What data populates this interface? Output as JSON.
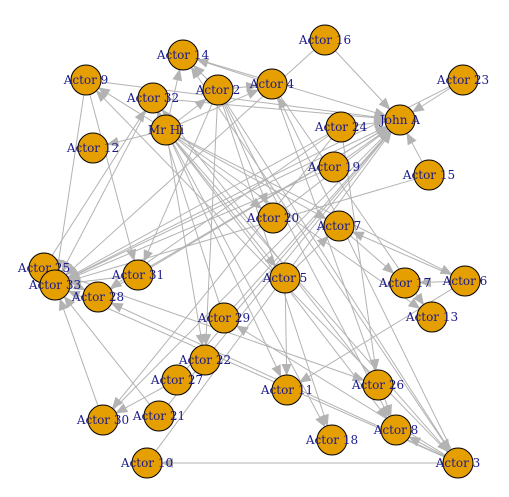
{
  "colors": {
    "node_fill": "#e69f00",
    "node_stroke": "#000000",
    "edge": "#b3b3b3",
    "label": "#1a1a8c",
    "background": "#ffffff"
  },
  "graph": {
    "nodes": [
      {
        "id": "actor16",
        "label": "Actor 16"
      },
      {
        "id": "actor14",
        "label": "Actor 14"
      },
      {
        "id": "actor23",
        "label": "Actor 23"
      },
      {
        "id": "actor9",
        "label": "Actor 9"
      },
      {
        "id": "actor4",
        "label": "Actor 4"
      },
      {
        "id": "actor2",
        "label": "Actor 2"
      },
      {
        "id": "actor32",
        "label": "Actor 32"
      },
      {
        "id": "johna",
        "label": "John A"
      },
      {
        "id": "mrhi",
        "label": "Mr Hi"
      },
      {
        "id": "actor24",
        "label": "Actor 24"
      },
      {
        "id": "actor12",
        "label": "Actor 12"
      },
      {
        "id": "actor19",
        "label": "Actor 19"
      },
      {
        "id": "actor15",
        "label": "Actor 15"
      },
      {
        "id": "actor20",
        "label": "Actor 20"
      },
      {
        "id": "actor7",
        "label": "Actor 7"
      },
      {
        "id": "actor25",
        "label": "Actor 25"
      },
      {
        "id": "actor31",
        "label": "Actor 31"
      },
      {
        "id": "actor33",
        "label": "Actor 33"
      },
      {
        "id": "actor5",
        "label": "Actor 5"
      },
      {
        "id": "actor17",
        "label": "Actor 17"
      },
      {
        "id": "actor6",
        "label": "Actor 6"
      },
      {
        "id": "actor28",
        "label": "Actor 28"
      },
      {
        "id": "actor13",
        "label": "Actor 13"
      },
      {
        "id": "actor29",
        "label": "Actor 29"
      },
      {
        "id": "actor22",
        "label": "Actor 22"
      },
      {
        "id": "actor27",
        "label": "Actor 27"
      },
      {
        "id": "actor11",
        "label": "Actor 11"
      },
      {
        "id": "actor26",
        "label": "Actor 26"
      },
      {
        "id": "actor30",
        "label": "Actor 30"
      },
      {
        "id": "actor21",
        "label": "Actor 21"
      },
      {
        "id": "actor8",
        "label": "Actor 8"
      },
      {
        "id": "actor18",
        "label": "Actor 18"
      },
      {
        "id": "actor10",
        "label": "Actor 10"
      },
      {
        "id": "actor3",
        "label": "Actor 3"
      }
    ],
    "edges": [
      [
        "mrhi",
        "actor2"
      ],
      [
        "mrhi",
        "actor3"
      ],
      [
        "mrhi",
        "actor4"
      ],
      [
        "mrhi",
        "actor5"
      ],
      [
        "mrhi",
        "actor6"
      ],
      [
        "mrhi",
        "actor7"
      ],
      [
        "mrhi",
        "actor8"
      ],
      [
        "mrhi",
        "actor9"
      ],
      [
        "mrhi",
        "actor11"
      ],
      [
        "mrhi",
        "actor12"
      ],
      [
        "mrhi",
        "actor13"
      ],
      [
        "mrhi",
        "actor14"
      ],
      [
        "mrhi",
        "actor18"
      ],
      [
        "mrhi",
        "actor20"
      ],
      [
        "mrhi",
        "actor22"
      ],
      [
        "mrhi",
        "actor32"
      ],
      [
        "actor2",
        "actor3"
      ],
      [
        "actor2",
        "actor4"
      ],
      [
        "actor2",
        "actor8"
      ],
      [
        "actor2",
        "actor14"
      ],
      [
        "actor2",
        "actor18"
      ],
      [
        "actor2",
        "actor20"
      ],
      [
        "actor2",
        "actor22"
      ],
      [
        "actor2",
        "actor31"
      ],
      [
        "actor3",
        "actor4"
      ],
      [
        "actor3",
        "actor8"
      ],
      [
        "actor3",
        "actor9"
      ],
      [
        "actor3",
        "actor10"
      ],
      [
        "actor3",
        "actor14"
      ],
      [
        "actor3",
        "actor28"
      ],
      [
        "actor3",
        "actor29"
      ],
      [
        "actor3",
        "actor33"
      ],
      [
        "actor4",
        "actor8"
      ],
      [
        "actor4",
        "actor13"
      ],
      [
        "actor4",
        "actor14"
      ],
      [
        "actor5",
        "actor7"
      ],
      [
        "actor5",
        "actor11"
      ],
      [
        "actor6",
        "actor7"
      ],
      [
        "actor6",
        "actor11"
      ],
      [
        "actor6",
        "actor17"
      ],
      [
        "actor7",
        "actor17"
      ],
      [
        "actor9",
        "actor31"
      ],
      [
        "actor9",
        "actor33"
      ],
      [
        "actor9",
        "johna"
      ],
      [
        "actor10",
        "johna"
      ],
      [
        "actor14",
        "johna"
      ],
      [
        "actor15",
        "actor33"
      ],
      [
        "actor15",
        "johna"
      ],
      [
        "actor16",
        "actor33"
      ],
      [
        "actor16",
        "johna"
      ],
      [
        "actor19",
        "actor33"
      ],
      [
        "actor19",
        "johna"
      ],
      [
        "actor20",
        "johna"
      ],
      [
        "actor21",
        "actor33"
      ],
      [
        "actor21",
        "johna"
      ],
      [
        "actor23",
        "actor33"
      ],
      [
        "actor23",
        "johna"
      ],
      [
        "actor24",
        "actor26"
      ],
      [
        "actor24",
        "actor28"
      ],
      [
        "actor24",
        "actor30"
      ],
      [
        "actor24",
        "actor33"
      ],
      [
        "actor24",
        "johna"
      ],
      [
        "actor25",
        "actor26"
      ],
      [
        "actor25",
        "actor28"
      ],
      [
        "actor25",
        "actor32"
      ],
      [
        "actor26",
        "actor32"
      ],
      [
        "actor27",
        "actor30"
      ],
      [
        "actor27",
        "johna"
      ],
      [
        "actor28",
        "johna"
      ],
      [
        "actor29",
        "actor32"
      ],
      [
        "actor29",
        "johna"
      ],
      [
        "actor30",
        "actor33"
      ],
      [
        "actor30",
        "johna"
      ],
      [
        "actor31",
        "actor33"
      ],
      [
        "actor31",
        "johna"
      ],
      [
        "actor32",
        "actor33"
      ],
      [
        "actor32",
        "johna"
      ],
      [
        "actor33",
        "johna"
      ]
    ]
  }
}
